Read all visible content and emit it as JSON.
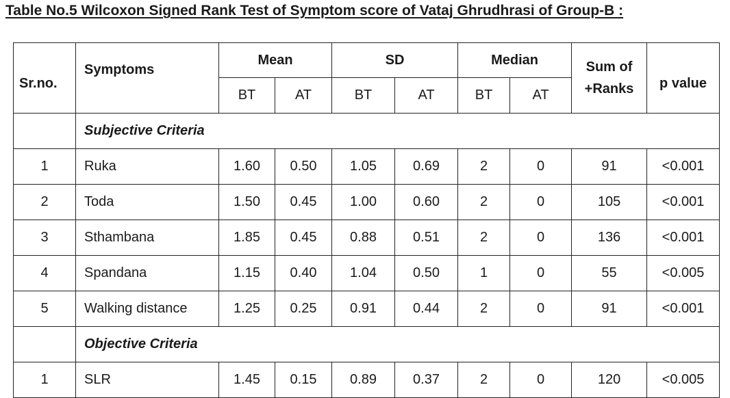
{
  "caption": "Table No.5 Wilcoxon Signed Rank Test of Symptom score of Vataj Ghrudhrasi of Group-B :",
  "headers": {
    "srno": "Sr.no.",
    "symptoms": "Symptoms",
    "mean": "Mean",
    "sd": "SD",
    "median": "Median",
    "sum_line1": "Sum of",
    "sum_line2": "+Ranks",
    "pvalue": "p value",
    "bt": "BT",
    "at": "AT"
  },
  "sections": [
    {
      "title": "Subjective Criteria",
      "rows": [
        {
          "sr": "1",
          "symptom": "Ruka",
          "mean_bt": "1.60",
          "mean_at": "0.50",
          "sd_bt": "1.05",
          "sd_at": "0.69",
          "median_bt": "2",
          "median_at": "0",
          "sum_ranks": "91",
          "p": "<0.001"
        },
        {
          "sr": "2",
          "symptom": "Toda",
          "mean_bt": "1.50",
          "mean_at": "0.45",
          "sd_bt": "1.00",
          "sd_at": "0.60",
          "median_bt": "2",
          "median_at": "0",
          "sum_ranks": "105",
          "p": "<0.001"
        },
        {
          "sr": "3",
          "symptom": "Sthambana",
          "mean_bt": "1.85",
          "mean_at": "0.45",
          "sd_bt": "0.88",
          "sd_at": "0.51",
          "median_bt": "2",
          "median_at": "0",
          "sum_ranks": "136",
          "p": "<0.001"
        },
        {
          "sr": "4",
          "symptom": "Spandana",
          "mean_bt": "1.15",
          "mean_at": "0.40",
          "sd_bt": "1.04",
          "sd_at": "0.50",
          "median_bt": "1",
          "median_at": "0",
          "sum_ranks": "55",
          "p": "<0.005"
        },
        {
          "sr": "5",
          "symptom": "Walking distance",
          "mean_bt": "1.25",
          "mean_at": "0.25",
          "sd_bt": "0.91",
          "sd_at": "0.44",
          "median_bt": "2",
          "median_at": "0",
          "sum_ranks": "91",
          "p": "<0.001"
        }
      ]
    },
    {
      "title": "Objective Criteria",
      "rows": [
        {
          "sr": "1",
          "symptom": "SLR",
          "mean_bt": "1.45",
          "mean_at": "0.15",
          "sd_bt": "0.89",
          "sd_at": "0.37",
          "median_bt": "2",
          "median_at": "0",
          "sum_ranks": "120",
          "p": "<0.005"
        }
      ]
    }
  ]
}
